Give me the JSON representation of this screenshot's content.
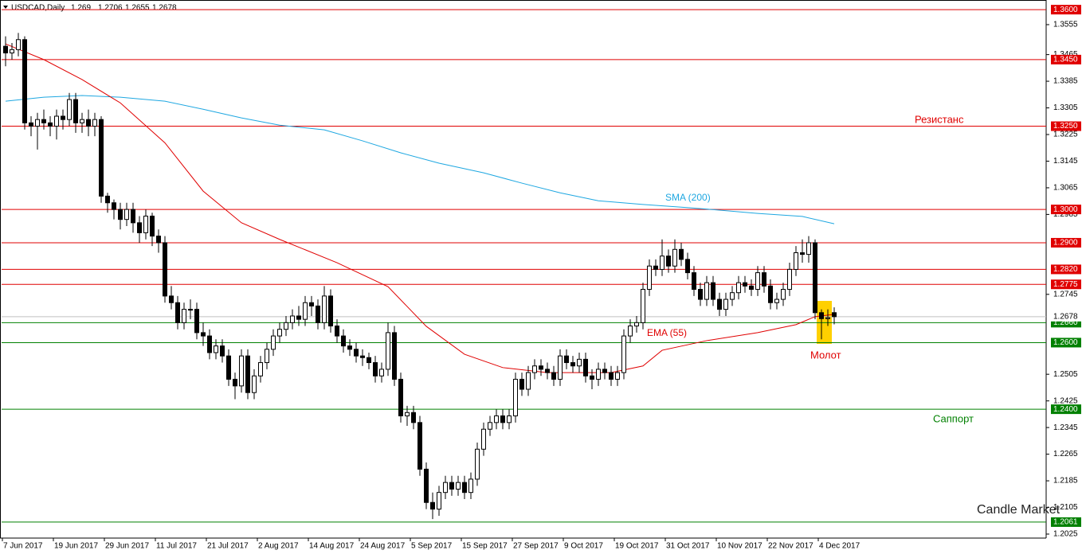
{
  "chart_data": {
    "type": "candlestick",
    "symbol": "USDCAD,Daily",
    "categories": [
      "7 Jun 2017",
      null,
      null,
      null,
      null,
      null,
      null,
      null,
      "19 Jun 2017",
      null,
      null,
      null,
      null,
      null,
      null,
      null,
      "29 Jun 2017",
      null,
      null,
      null,
      null,
      null,
      null,
      null,
      "11 Jul 2017",
      null,
      null,
      null,
      null,
      null,
      null,
      null,
      "21 Jul 2017",
      null,
      null,
      null,
      null,
      null,
      null,
      null,
      "2 Aug 2017",
      null,
      null,
      null,
      null,
      null,
      null,
      null,
      "14 Aug 2017",
      null,
      null,
      null,
      null,
      null,
      null,
      null,
      "24 Aug 2017",
      null,
      null,
      null,
      null,
      null,
      null,
      null,
      "5 Sep 2017",
      null,
      null,
      null,
      null,
      null,
      null,
      null,
      "15 Sep 2017",
      null,
      null,
      null,
      null,
      null,
      null,
      null,
      "27 Sep 2017",
      null,
      null,
      null,
      null,
      null,
      null,
      null,
      "9 Oct 2017",
      null,
      null,
      null,
      null,
      null,
      null,
      null,
      "19 Oct 2017",
      null,
      null,
      null,
      null,
      null,
      null,
      null,
      "31 Oct 2017",
      null,
      null,
      null,
      null,
      null,
      null,
      null,
      "10 Nov 2017",
      null,
      null,
      null,
      null,
      null,
      null,
      null,
      "22 Nov 2017",
      null,
      null,
      null,
      null,
      null,
      null,
      null,
      "4 Dec 2017",
      null,
      null
    ],
    "ohlc": [
      [
        1.349,
        1.352,
        1.343,
        1.347
      ],
      [
        1.347,
        1.35,
        1.345,
        1.348
      ],
      [
        1.348,
        1.353,
        1.346,
        1.351
      ],
      [
        1.351,
        1.352,
        1.324,
        1.326
      ],
      [
        1.326,
        1.328,
        1.322,
        1.325
      ],
      [
        1.325,
        1.329,
        1.318,
        1.327
      ],
      [
        1.327,
        1.33,
        1.324,
        1.326
      ],
      [
        1.326,
        1.328,
        1.322,
        1.325
      ],
      [
        1.325,
        1.33,
        1.321,
        1.328
      ],
      [
        1.328,
        1.33,
        1.324,
        1.327
      ],
      [
        1.327,
        1.335,
        1.325,
        1.333
      ],
      [
        1.333,
        1.335,
        1.323,
        1.326
      ],
      [
        1.326,
        1.329,
        1.323,
        1.327
      ],
      [
        1.327,
        1.33,
        1.322,
        1.325
      ],
      [
        1.325,
        1.329,
        1.322,
        1.327
      ],
      [
        1.327,
        1.328,
        1.302,
        1.304
      ],
      [
        1.304,
        1.305,
        1.299,
        1.302
      ],
      [
        1.302,
        1.303,
        1.297,
        1.3
      ],
      [
        1.3,
        1.302,
        1.294,
        1.297
      ],
      [
        1.297,
        1.302,
        1.295,
        1.3
      ],
      [
        1.3,
        1.302,
        1.293,
        1.296
      ],
      [
        1.296,
        1.298,
        1.29,
        1.293
      ],
      [
        1.293,
        1.3,
        1.291,
        1.298
      ],
      [
        1.298,
        1.299,
        1.289,
        1.292
      ],
      [
        1.292,
        1.294,
        1.287,
        1.29
      ],
      [
        1.29,
        1.292,
        1.272,
        1.274
      ],
      [
        1.274,
        1.277,
        1.27,
        1.272
      ],
      [
        1.272,
        1.274,
        1.264,
        1.266
      ],
      [
        1.266,
        1.272,
        1.264,
        1.27
      ],
      [
        1.27,
        1.273,
        1.267,
        1.27
      ],
      [
        1.27,
        1.272,
        1.261,
        1.263
      ],
      [
        1.263,
        1.266,
        1.259,
        1.262
      ],
      [
        1.262,
        1.264,
        1.255,
        1.257
      ],
      [
        1.257,
        1.261,
        1.255,
        1.259
      ],
      [
        1.259,
        1.261,
        1.254,
        1.256
      ],
      [
        1.256,
        1.258,
        1.247,
        1.249
      ],
      [
        1.249,
        1.251,
        1.243,
        1.247
      ],
      [
        1.247,
        1.258,
        1.245,
        1.256
      ],
      [
        1.256,
        1.258,
        1.243,
        1.245
      ],
      [
        1.245,
        1.252,
        1.243,
        1.25
      ],
      [
        1.25,
        1.256,
        1.248,
        1.254
      ],
      [
        1.254,
        1.26,
        1.252,
        1.258
      ],
      [
        1.258,
        1.264,
        1.256,
        1.262
      ],
      [
        1.262,
        1.266,
        1.26,
        1.264
      ],
      [
        1.264,
        1.268,
        1.262,
        1.266
      ],
      [
        1.266,
        1.27,
        1.264,
        1.268
      ],
      [
        1.268,
        1.271,
        1.265,
        1.267
      ],
      [
        1.267,
        1.274,
        1.265,
        1.272
      ],
      [
        1.272,
        1.274,
        1.268,
        1.271
      ],
      [
        1.271,
        1.273,
        1.264,
        1.266
      ],
      [
        1.266,
        1.277,
        1.264,
        1.274
      ],
      [
        1.274,
        1.276,
        1.263,
        1.265
      ],
      [
        1.265,
        1.267,
        1.26,
        1.262
      ],
      [
        1.262,
        1.264,
        1.257,
        1.259
      ],
      [
        1.259,
        1.261,
        1.256,
        1.258
      ],
      [
        1.258,
        1.26,
        1.254,
        1.256
      ],
      [
        1.256,
        1.258,
        1.253,
        1.2555
      ],
      [
        1.2555,
        1.257,
        1.252,
        1.254
      ],
      [
        1.254,
        1.256,
        1.248,
        1.25
      ],
      [
        1.25,
        1.254,
        1.248,
        1.252
      ],
      [
        1.252,
        1.266,
        1.25,
        1.263
      ],
      [
        1.263,
        1.265,
        1.247,
        1.249
      ],
      [
        1.249,
        1.251,
        1.236,
        1.238
      ],
      [
        1.238,
        1.241,
        1.235,
        1.239
      ],
      [
        1.239,
        1.241,
        1.234,
        1.236
      ],
      [
        1.236,
        1.238,
        1.22,
        1.222
      ],
      [
        1.222,
        1.224,
        1.21,
        1.212
      ],
      [
        1.212,
        1.215,
        1.207,
        1.21
      ],
      [
        1.21,
        1.217,
        1.208,
        1.215
      ],
      [
        1.215,
        1.22,
        1.213,
        1.218
      ],
      [
        1.218,
        1.22,
        1.214,
        1.216
      ],
      [
        1.216,
        1.22,
        1.214,
        1.218
      ],
      [
        1.218,
        1.22,
        1.213,
        1.215
      ],
      [
        1.215,
        1.221,
        1.213,
        1.219
      ],
      [
        1.219,
        1.23,
        1.217,
        1.228
      ],
      [
        1.228,
        1.236,
        1.226,
        1.234
      ],
      [
        1.234,
        1.238,
        1.232,
        1.236
      ],
      [
        1.236,
        1.24,
        1.234,
        1.238
      ],
      [
        1.238,
        1.24,
        1.234,
        1.236
      ],
      [
        1.236,
        1.24,
        1.234,
        1.238
      ],
      [
        1.238,
        1.251,
        1.236,
        1.249
      ],
      [
        1.249,
        1.251,
        1.244,
        1.246
      ],
      [
        1.246,
        1.253,
        1.244,
        1.251
      ],
      [
        1.251,
        1.255,
        1.249,
        1.253
      ],
      [
        1.253,
        1.255,
        1.25,
        1.252
      ],
      [
        1.252,
        1.254,
        1.249,
        1.251
      ],
      [
        1.251,
        1.253,
        1.247,
        1.249
      ],
      [
        1.249,
        1.258,
        1.247,
        1.256
      ],
      [
        1.256,
        1.258,
        1.252,
        1.254
      ],
      [
        1.254,
        1.256,
        1.251,
        1.253
      ],
      [
        1.253,
        1.257,
        1.251,
        1.255
      ],
      [
        1.255,
        1.257,
        1.248,
        1.25
      ],
      [
        1.25,
        1.252,
        1.246,
        1.249
      ],
      [
        1.249,
        1.254,
        1.247,
        1.252
      ],
      [
        1.252,
        1.254,
        1.249,
        1.251
      ],
      [
        1.251,
        1.253,
        1.247,
        1.249
      ],
      [
        1.249,
        1.253,
        1.247,
        1.251
      ],
      [
        1.251,
        1.264,
        1.249,
        1.262
      ],
      [
        1.262,
        1.267,
        1.26,
        1.265
      ],
      [
        1.265,
        1.268,
        1.263,
        1.266
      ],
      [
        1.266,
        1.278,
        1.264,
        1.276
      ],
      [
        1.276,
        1.285,
        1.274,
        1.283
      ],
      [
        1.283,
        1.285,
        1.28,
        1.282
      ],
      [
        1.282,
        1.291,
        1.28,
        1.286
      ],
      [
        1.286,
        1.288,
        1.281,
        1.283
      ],
      [
        1.283,
        1.291,
        1.281,
        1.288
      ],
      [
        1.288,
        1.29,
        1.283,
        1.285
      ],
      [
        1.285,
        1.287,
        1.279,
        1.281
      ],
      [
        1.281,
        1.283,
        1.274,
        1.276
      ],
      [
        1.276,
        1.278,
        1.271,
        1.273
      ],
      [
        1.273,
        1.28,
        1.271,
        1.278
      ],
      [
        1.278,
        1.28,
        1.271,
        1.273
      ],
      [
        1.273,
        1.275,
        1.268,
        1.27
      ],
      [
        1.27,
        1.275,
        1.268,
        1.273
      ],
      [
        1.273,
        1.277,
        1.271,
        1.275
      ],
      [
        1.275,
        1.28,
        1.273,
        1.278
      ],
      [
        1.278,
        1.28,
        1.275,
        1.277
      ],
      [
        1.277,
        1.279,
        1.274,
        1.276
      ],
      [
        1.276,
        1.283,
        1.274,
        1.281
      ],
      [
        1.281,
        1.283,
        1.275,
        1.277
      ],
      [
        1.277,
        1.279,
        1.27,
        1.272
      ],
      [
        1.272,
        1.275,
        1.27,
        1.273
      ],
      [
        1.273,
        1.278,
        1.271,
        1.276
      ],
      [
        1.276,
        1.284,
        1.274,
        1.282
      ],
      [
        1.282,
        1.289,
        1.28,
        1.287
      ],
      [
        1.287,
        1.291,
        1.284,
        1.2865
      ],
      [
        1.2865,
        1.292,
        1.284,
        1.29
      ],
      [
        1.29,
        1.291,
        1.267,
        1.269
      ],
      [
        1.269,
        1.27,
        1.261,
        1.2672
      ],
      [
        1.2672,
        1.27,
        1.265,
        1.2675
      ],
      [
        1.269,
        1.2706,
        1.2655,
        1.2678
      ]
    ],
    "ylim": [
      1.2013,
      1.3629
    ],
    "yticks": [
      1.3555,
      1.3465,
      1.3385,
      1.3305,
      1.3225,
      1.3145,
      1.3065,
      1.2985,
      1.2745,
      1.2505,
      1.2425,
      1.2345,
      1.2265,
      1.2185,
      1.2105,
      1.2025
    ],
    "lines": [
      {
        "name": "SMA (200)",
        "color": "#1ea7e1",
        "x": [
          0,
          6,
          12,
          18,
          25,
          31,
          37,
          43,
          50,
          56,
          62,
          68,
          75,
          81,
          87,
          93,
          100,
          106,
          112,
          118,
          125,
          130
        ],
        "values": [
          1.3325,
          1.3337,
          1.3342,
          1.3337,
          1.3325,
          1.3301,
          1.3275,
          1.3253,
          1.3239,
          1.3206,
          1.317,
          1.3139,
          1.311,
          1.3079,
          1.305,
          1.3026,
          1.3015,
          1.3007,
          1.2998,
          1.2988,
          1.2979,
          1.2957
        ]
      },
      {
        "name": "EMA (55)",
        "color": "#e00000",
        "x": [
          0,
          6,
          12,
          18,
          25,
          31,
          37,
          43,
          52,
          60,
          66,
          72,
          78,
          85,
          95,
          100,
          103,
          110,
          118,
          124,
          127,
          130
        ],
        "values": [
          1.3497,
          1.345,
          1.339,
          1.332,
          1.32,
          1.3055,
          1.296,
          1.291,
          1.284,
          1.2768,
          1.2649,
          1.2565,
          1.2525,
          1.251,
          1.251,
          1.253,
          1.2577,
          1.2606,
          1.263,
          1.2654,
          1.2678,
          1.2685
        ]
      }
    ],
    "levels": [
      {
        "value": 1.36,
        "label": "1.3600",
        "color": "#e00000"
      },
      {
        "value": 1.345,
        "label": "1.3450",
        "color": "#e00000"
      },
      {
        "value": 1.325,
        "label": "1.3250",
        "color": "#e00000"
      },
      {
        "value": 1.3,
        "label": "1.3000",
        "color": "#e00000"
      },
      {
        "value": 1.29,
        "label": "1.2900",
        "color": "#e00000"
      },
      {
        "value": 1.282,
        "label": "1.2820",
        "color": "#e00000"
      },
      {
        "value": 1.2775,
        "color": "#e00000"
      },
      {
        "value": 1.266,
        "label": "1.2660",
        "color": "#008000"
      },
      {
        "value": 1.26,
        "label": "1.2600",
        "color": "#008000"
      },
      {
        "value": 1.24,
        "label": "1.2400",
        "color": "#008000"
      },
      {
        "value": 1.2061,
        "color": "#008000"
      }
    ],
    "last_price": 1.2678,
    "annotations": [
      {
        "text": "Резистанс",
        "color": "#e00000"
      },
      {
        "text": "Саппорт",
        "color": "#008000"
      },
      {
        "text": "Молот",
        "color": "#e00000"
      },
      {
        "text": "Candle Market",
        "color": "#222222"
      }
    ]
  }
}
